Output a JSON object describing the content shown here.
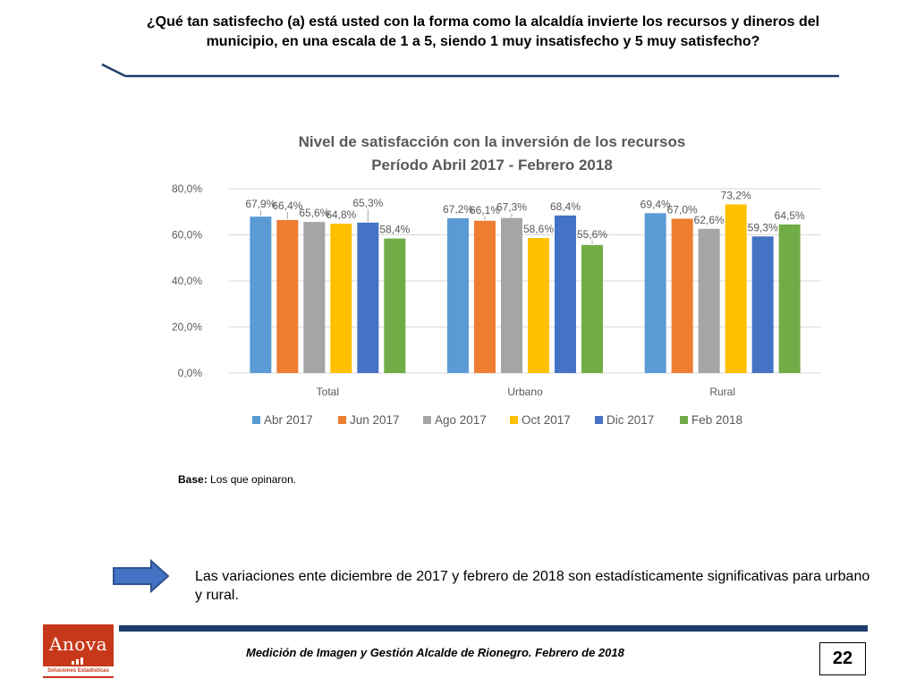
{
  "question": "¿Qué tan satisfecho (a) está usted con la forma como la alcaldía invierte los recursos y dineros del municipio, en una escala de 1 a 5, siendo 1 muy insatisfecho y 5 muy satisfecho?",
  "base_label": "Base:",
  "base_text": " Los que opinaron.",
  "conclusion": "Las variaciones ente diciembre de 2017 y febrero de 2018 son estadísticamente significativas para urbano y rural.",
  "footer": "Medición de Imagen y Gestión Alcalde de Rionegro. Febrero de 2018",
  "page_number": "22",
  "logo": {
    "name": "Anova",
    "tagline": "Soluciones Estadísticas",
    "color": "#c7381a"
  },
  "colors": {
    "rule": "#1f3c6b",
    "arrow": "#4472c4"
  },
  "chart_data": {
    "type": "bar",
    "title": "Nivel de satisfacción con la inversión de los recursos",
    "subtitle": "Período Abril 2017 - Febrero 2018",
    "categories": [
      "Total",
      "Urbano",
      "Rural"
    ],
    "series": [
      {
        "name": "Abr 2017",
        "color": "#5b9bd5",
        "values": [
          67.9,
          67.2,
          69.4
        ],
        "labels": [
          "67,9%",
          "67,2%",
          "69,4%"
        ]
      },
      {
        "name": "Jun 2017",
        "color": "#ed7d31",
        "values": [
          66.4,
          66.1,
          67.0
        ],
        "labels": [
          "66,4%",
          "66,1%",
          "67,0%"
        ]
      },
      {
        "name": "Ago 2017",
        "color": "#a5a5a5",
        "values": [
          65.6,
          67.3,
          62.6
        ],
        "labels": [
          "65,6%",
          "67,3%",
          "62,6%"
        ]
      },
      {
        "name": "Oct 2017",
        "color": "#ffc000",
        "values": [
          64.8,
          58.6,
          73.2
        ],
        "labels": [
          "64,8%",
          "58,6%",
          "73,2%"
        ]
      },
      {
        "name": "Dic 2017",
        "color": "#4472c4",
        "values": [
          65.3,
          68.4,
          59.3
        ],
        "labels": [
          "65,3%",
          "68,4%",
          "59,3%"
        ]
      },
      {
        "name": "Feb 2018",
        "color": "#70ad47",
        "values": [
          58.4,
          55.6,
          64.5
        ],
        "labels": [
          "58,4%",
          "55,6%",
          "64,5%"
        ]
      }
    ],
    "yticks": [
      0,
      20,
      40,
      60,
      80
    ],
    "ytick_labels": [
      "0,0%",
      "20,0%",
      "40,0%",
      "60,0%",
      "80,0%"
    ],
    "ylim": [
      0,
      80
    ],
    "grid": true,
    "legend_position": "bottom"
  }
}
